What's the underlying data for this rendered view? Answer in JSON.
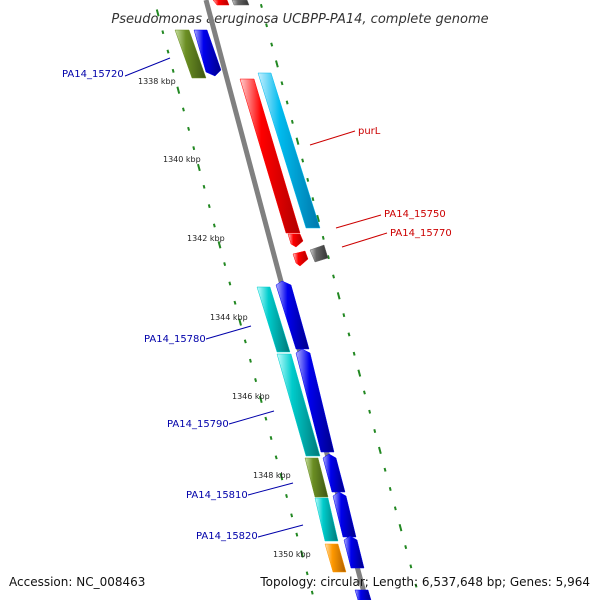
{
  "title": "Pseudomonas aeruginosa UCBPP-PA14, complete genome",
  "footer": {
    "accession": "Accession: NC_008463",
    "summary": "Topology: circular; Length: 6,537,648 bp; Genes: 5,964"
  },
  "colors": {
    "backbone": "#808080",
    "tick": "#228822",
    "label_forward": "#cc0000",
    "label_reverse": "#0000aa",
    "red": "#ff0000",
    "gray": "#666666",
    "olive": "#6b8e23",
    "blue": "#0000ee",
    "cyan": "#00cccc",
    "skyblue": "#00bbee",
    "orange": "#ff9900"
  },
  "kbp_labels": [
    "1338 kbp",
    "1340 kbp",
    "1342 kbp",
    "1344 kbp",
    "1346 kbp",
    "1348 kbp",
    "1350 kbp"
  ],
  "forward_strand_genes": [
    {
      "color": "red",
      "label": ""
    },
    {
      "color": "gray",
      "label": ""
    },
    {
      "color": "skyblue",
      "label": ""
    },
    {
      "color": "red",
      "label": "purL"
    },
    {
      "color": "red",
      "label": "PA14_15750"
    },
    {
      "color": "gray",
      "label": "PA14_15770"
    }
  ],
  "reverse_strand_genes": [
    {
      "color": "olive",
      "label": "PA14_15720"
    },
    {
      "color": "blue",
      "label": ""
    },
    {
      "color": "cyan",
      "label": "PA14_15780"
    },
    {
      "color": "blue",
      "label": ""
    },
    {
      "color": "cyan",
      "label": "PA14_15790"
    },
    {
      "color": "blue",
      "label": ""
    },
    {
      "color": "olive",
      "label": "PA14_15810"
    },
    {
      "color": "blue",
      "label": ""
    },
    {
      "color": "cyan",
      "label": "PA14_15820"
    },
    {
      "color": "blue",
      "label": ""
    },
    {
      "color": "orange",
      "label": ""
    },
    {
      "color": "blue",
      "label": ""
    }
  ]
}
